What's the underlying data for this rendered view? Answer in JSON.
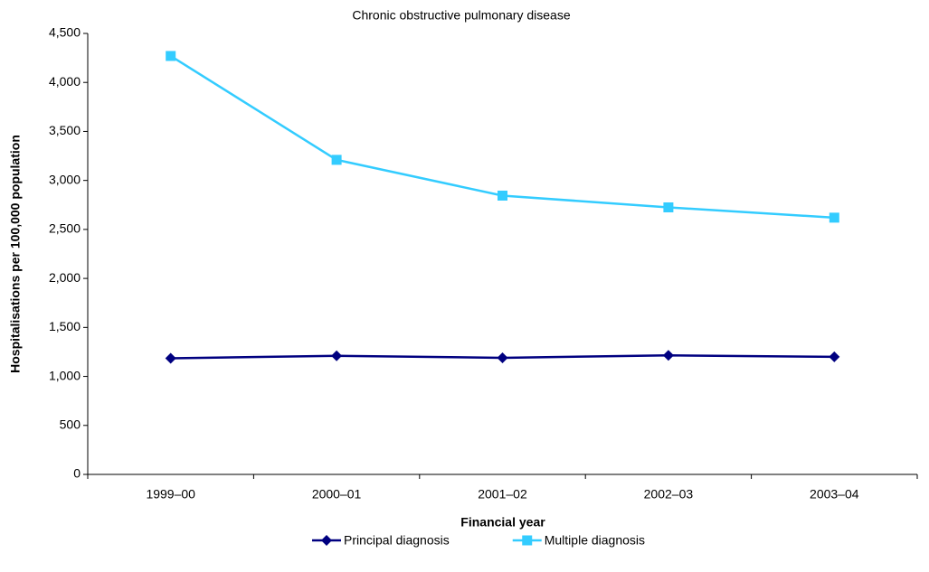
{
  "chart_data": {
    "type": "line",
    "title": "Chronic obstructive pulmonary disease",
    "x_label": "Financial year",
    "y_label": "Hospitalisations per 100,000 population",
    "categories": [
      "1999–00",
      "2000–01",
      "2001–02",
      "2002–03",
      "2003–04"
    ],
    "series": [
      {
        "name": "Principal diagnosis",
        "color": "#000080",
        "marker": "diamond",
        "values": [
          1185,
          1210,
          1190,
          1215,
          1200
        ]
      },
      {
        "name": "Multiple diagnosis",
        "color": "#33ccff",
        "marker": "square",
        "values": [
          4270,
          3210,
          2845,
          2725,
          2620
        ]
      }
    ],
    "ylim": [
      0,
      4500
    ],
    "yticks": [
      0,
      500,
      {
        "value": 1000,
        "label": "1,000"
      },
      {
        "value": 1500,
        "label": "1,500"
      },
      {
        "value": 2000,
        "label": "2,000"
      },
      {
        "value": 2500,
        "label": "2,500"
      },
      {
        "value": 3000,
        "label": "3,000"
      },
      {
        "value": 3500,
        "label": "3,500"
      },
      {
        "value": 4000,
        "label": "4,000"
      },
      {
        "value": 4500,
        "label": "4,500"
      }
    ],
    "grid": false,
    "legend": "bottom"
  }
}
